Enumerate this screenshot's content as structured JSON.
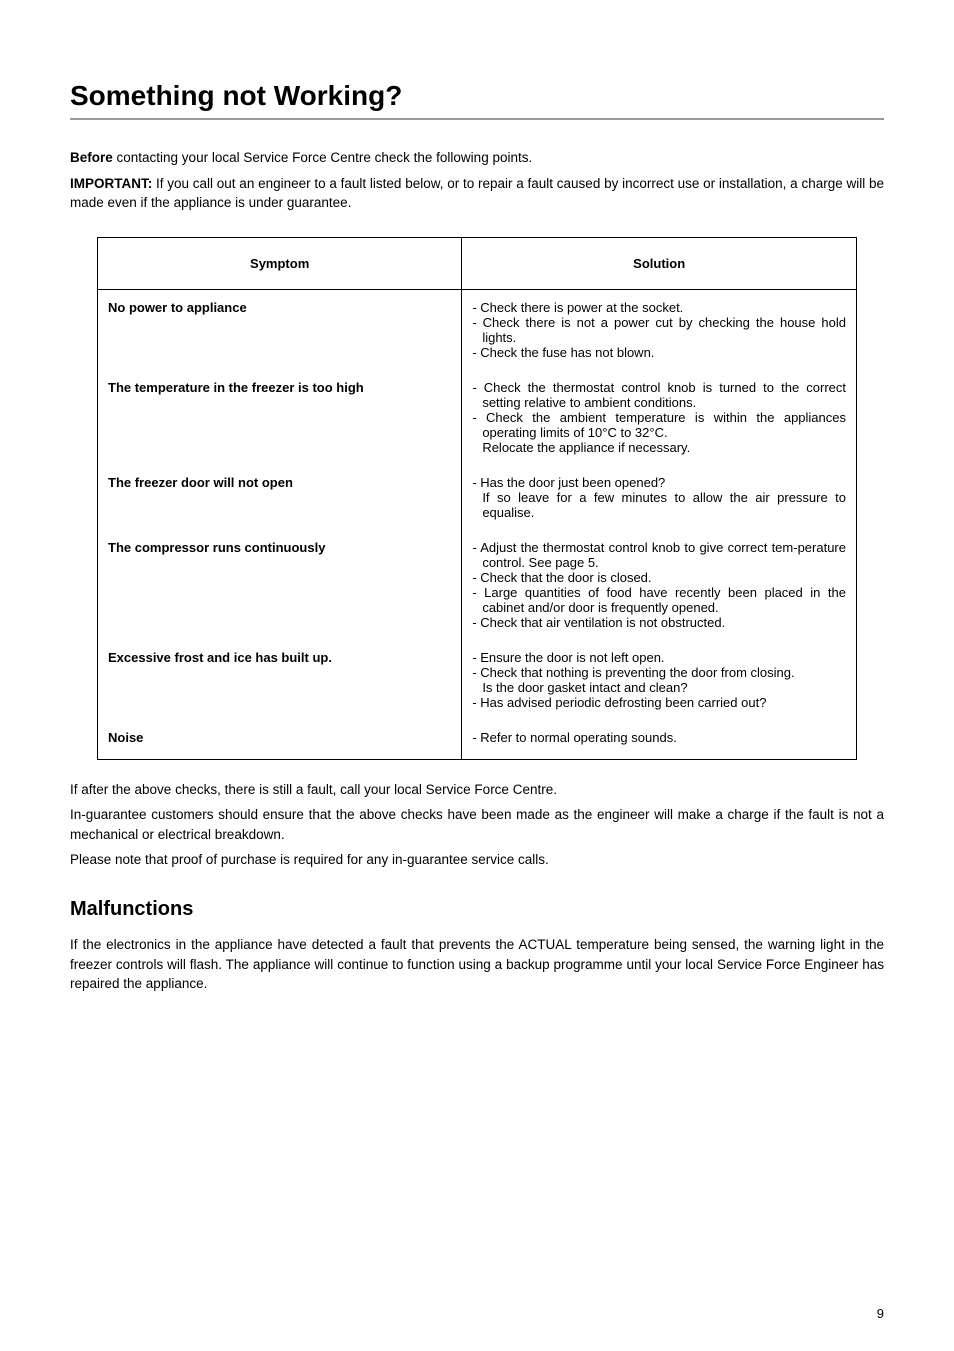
{
  "title": "Something not Working?",
  "intro": [
    {
      "bold": "Before",
      "rest": " contacting your local Service Force Centre check the following points."
    },
    {
      "bold": "IMPORTANT:",
      "rest": " If you call out an engineer to a fault listed below, or to repair a fault caused by incorrect use or installation, a charge will be made even if the appliance is under guarantee."
    }
  ],
  "table": {
    "headers": [
      "Symptom",
      "Solution"
    ],
    "rows": [
      {
        "symptom": "No power to appliance",
        "solution": [
          "- Check there is power at the socket.",
          "- Check there is not a power cut by checking the house hold lights.",
          "- Check the fuse has not blown."
        ]
      },
      {
        "symptom": "The temperature in the freezer is too high",
        "solution": [
          "- Check the thermostat control knob is turned to the correct setting relative to ambient conditions.",
          "- Check the ambient temperature is within the appliances operating limits of 10°C to 32°C.",
          "  Relocate the appliance if necessary."
        ]
      },
      {
        "symptom": "The freezer door will not open",
        "solution": [
          "- Has the door just been opened?",
          "  If so leave for a few minutes to allow the air pressure to equalise."
        ]
      },
      {
        "symptom": "The compressor runs continuously",
        "solution": [
          "- Adjust the thermostat control knob to give correct tem-perature control. See page 5.",
          "- Check that the door is closed.",
          "- Large quantities of food have recently been placed in the cabinet and/or door is frequently opened.",
          "- Check that air ventilation is not obstructed."
        ]
      },
      {
        "symptom": "Excessive frost and ice has built up.",
        "solution": [
          "- Ensure the door is not left open.",
          "- Check that nothing is preventing the door from closing.",
          "  Is the door gasket intact and clean?",
          "- Has advised periodic defrosting been carried out?"
        ]
      },
      {
        "symptom": "Noise",
        "solution": [
          "- Refer to normal operating sounds."
        ]
      }
    ]
  },
  "after": [
    "If after the above checks, there is still a fault, call your local Service Force Centre.",
    "In-guarantee customers should ensure that the above checks have been made as the engineer will make a charge if the fault is not a mechanical or electrical breakdown.",
    "Please note that proof of purchase is required for any in-guarantee service calls."
  ],
  "malfunctions": {
    "heading": "Malfunctions",
    "body": "If the electronics in the appliance have detected a fault that prevents the ACTUAL temperature being sensed, the warning light in the freezer controls will flash. The appliance will continue to function using a backup programme until your local Service Force Engineer has repaired the appliance."
  },
  "pageNumber": "9"
}
